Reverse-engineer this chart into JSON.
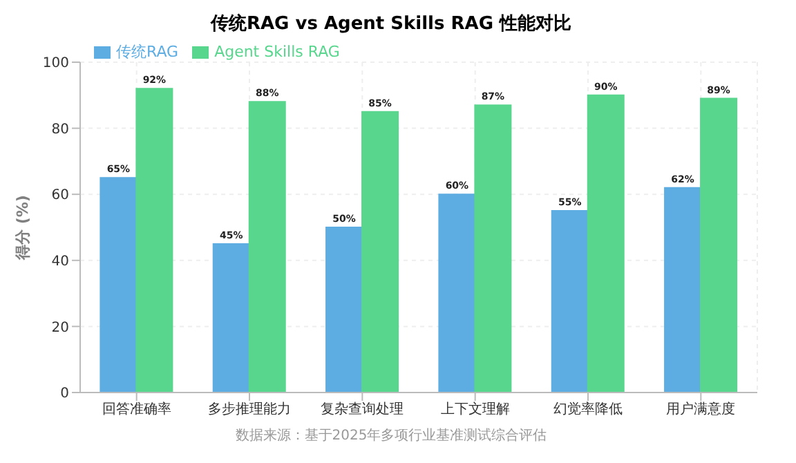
{
  "chart_data": {
    "type": "bar",
    "title": "传统RAG vs Agent Skills RAG 性能对比",
    "ylabel": "得分 (%)",
    "categories": [
      "回答准确率",
      "多步推理能力",
      "复杂查询处理",
      "上下文理解",
      "幻觉率降低",
      "用户满意度"
    ],
    "series": [
      {
        "name": "传统RAG",
        "color": "#5dade2",
        "values": [
          65,
          45,
          50,
          60,
          55,
          62
        ],
        "value_labels": [
          "65%",
          "45%",
          "50%",
          "60%",
          "55%",
          "62%"
        ]
      },
      {
        "name": "Agent Skills RAG",
        "color": "#58d68d",
        "values": [
          92,
          88,
          85,
          87,
          90,
          89
        ],
        "value_labels": [
          "92%",
          "88%",
          "85%",
          "87%",
          "90%",
          "89%"
        ]
      }
    ],
    "ylim": [
      0,
      100
    ],
    "yticks": [
      0,
      20,
      40,
      60,
      80,
      100
    ],
    "grid": true,
    "legend": "top left",
    "annotations": [
      "数据来源：基于2025年多项行业基准测试综合评估"
    ]
  }
}
